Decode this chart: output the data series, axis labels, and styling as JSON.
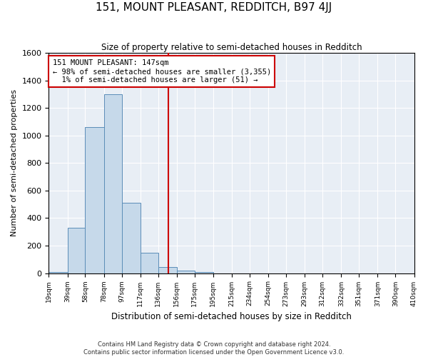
{
  "title": "151, MOUNT PLEASANT, REDDITCH, B97 4JJ",
  "subtitle": "Size of property relative to semi-detached houses in Redditch",
  "xlabel": "Distribution of semi-detached houses by size in Redditch",
  "ylabel": "Number of semi-detached properties",
  "bin_starts": [
    19,
    39,
    58,
    78,
    97,
    117,
    136,
    156,
    175,
    195,
    215,
    234,
    254,
    273,
    293,
    312,
    332,
    351,
    371,
    390,
    410
  ],
  "bar_values": [
    10,
    330,
    1060,
    1300,
    510,
    150,
    45,
    20,
    10,
    0,
    0,
    0,
    0,
    0,
    0,
    0,
    0,
    0,
    0,
    0
  ],
  "bar_color": "#c6d9ea",
  "bar_edge_color": "#5b8db8",
  "reference_line_x": 147,
  "pct_smaller": 98,
  "n_smaller": 3355,
  "pct_larger": 1,
  "n_larger": 51,
  "ylim": [
    0,
    1600
  ],
  "yticks": [
    0,
    200,
    400,
    600,
    800,
    1000,
    1200,
    1400,
    1600
  ],
  "annotation_box_color": "white",
  "annotation_box_edge_color": "#cc0000",
  "vline_color": "#cc0000",
  "bg_color": "#e8eef5",
  "grid_color": "white",
  "footer_line1": "Contains HM Land Registry data © Crown copyright and database right 2024.",
  "footer_line2": "Contains public sector information licensed under the Open Government Licence v3.0."
}
